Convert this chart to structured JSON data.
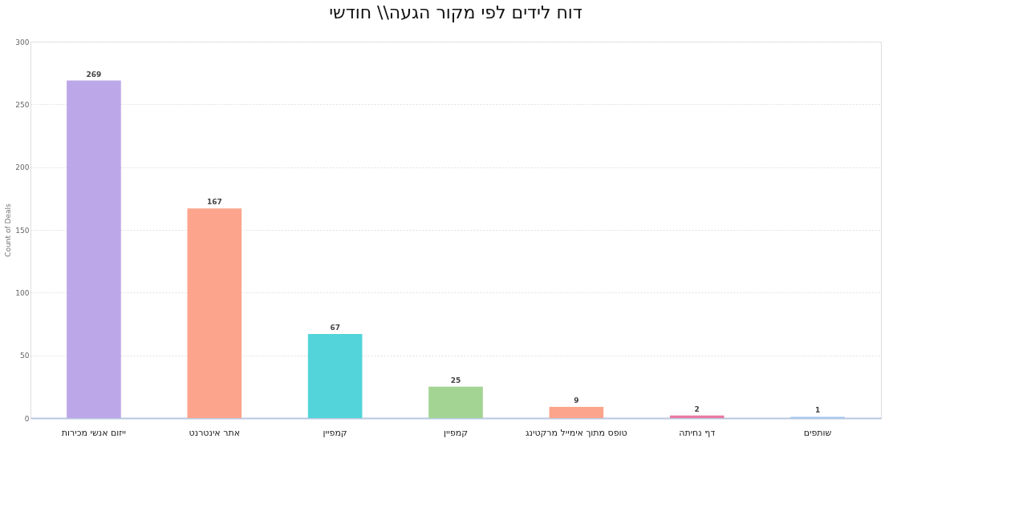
{
  "chart_data": {
    "type": "bar",
    "title": "דוח לידים לפי מקור הגעה\\\\ חודשי",
    "ylabel": "Count of Deals",
    "categories": [
      "ייזום אנשי מכירות",
      "אתר אינטרנט",
      "קמפיין",
      "קמפיין",
      "טופס מתוך אימייל מרקטינג",
      "דף נחיתה",
      "שותפים"
    ],
    "values": [
      269,
      167,
      67,
      25,
      9,
      2,
      1
    ],
    "colors": [
      "#bca8e8",
      "#fca58c",
      "#52d4da",
      "#a3d494",
      "#fca58c",
      "#e87aa0",
      "#9ec5ee"
    ],
    "ylim": [
      0,
      300
    ],
    "yticks": [
      0,
      50,
      100,
      150,
      200,
      250,
      300
    ],
    "grid": "y",
    "data_labels": true
  }
}
